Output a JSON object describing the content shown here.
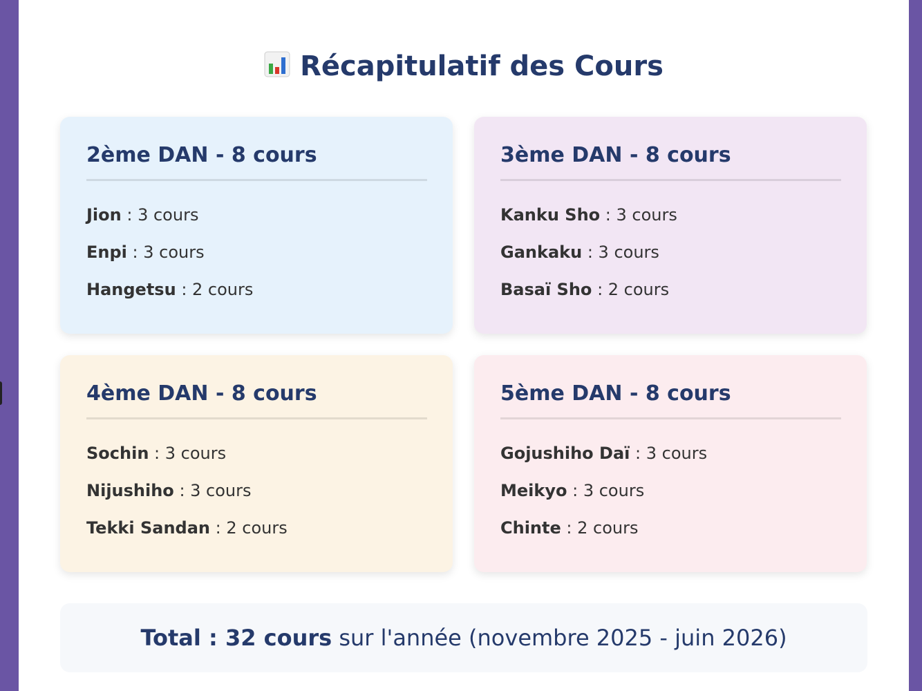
{
  "page": {
    "title": "Récapitulatif des Cours",
    "title_icon": "bar-chart-icon"
  },
  "cards": [
    {
      "title": "2ème DAN - 8 cours",
      "color": "#e6f2fc",
      "items": [
        {
          "name": "Jion",
          "count": ": 3 cours"
        },
        {
          "name": "Enpi",
          "count": ": 3 cours"
        },
        {
          "name": "Hangetsu",
          "count": ": 2 cours"
        }
      ]
    },
    {
      "title": "3ème DAN - 8 cours",
      "color": "#f2e6f4",
      "items": [
        {
          "name": "Kanku Sho",
          "count": ": 3 cours"
        },
        {
          "name": "Gankaku",
          "count": ": 3 cours"
        },
        {
          "name": "Basaï Sho",
          "count": ": 2 cours"
        }
      ]
    },
    {
      "title": "4ème DAN - 8 cours",
      "color": "#fcf3e4",
      "items": [
        {
          "name": "Sochin",
          "count": ": 3 cours"
        },
        {
          "name": "Nijushiho",
          "count": ": 3 cours"
        },
        {
          "name": "Tekki Sandan",
          "count": ": 2 cours"
        }
      ]
    },
    {
      "title": "5ème DAN - 8 cours",
      "color": "#fcecef",
      "items": [
        {
          "name": "Gojushiho Daï",
          "count": ": 3 cours"
        },
        {
          "name": "Meikyo",
          "count": ": 3 cours"
        },
        {
          "name": "Chinte",
          "count": ": 2 cours"
        }
      ]
    }
  ],
  "total": {
    "label": "Total : 32 cours",
    "rest": " sur l'année (novembre 2025 - juin 2026)"
  },
  "colors": {
    "background": "#6a55a4",
    "heading": "#253a6b"
  }
}
